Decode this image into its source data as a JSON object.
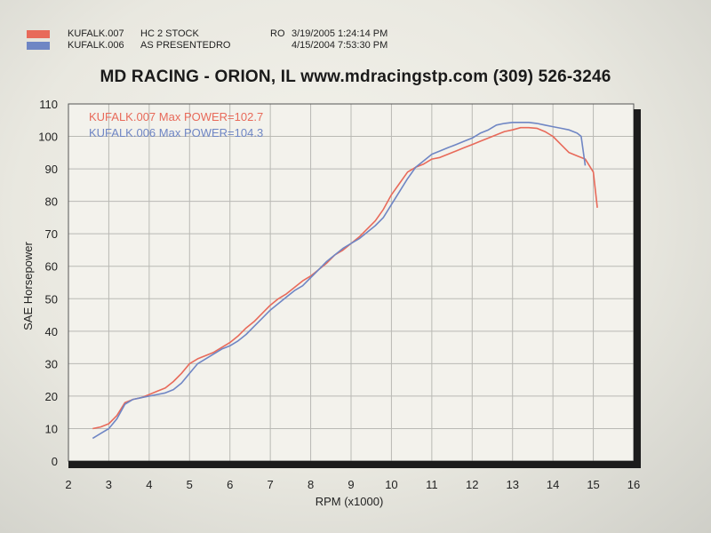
{
  "header": {
    "runs": [
      {
        "id": "KUFALK.007",
        "desc": "HC 2 STOCK",
        "code": "RO",
        "datetime": "3/19/2005 1:24:14 PM",
        "color": "#e86a5a"
      },
      {
        "id": "KUFALK.006",
        "desc": "AS PRESENTEDRO",
        "code": "",
        "datetime": "4/15/2004 7:53:30 PM",
        "color": "#6f86c4"
      }
    ],
    "title": "MD RACING - ORION, IL www.mdracingstp.com (309) 526-3246"
  },
  "chart_data": {
    "type": "line",
    "xlabel": "RPM (x1000)",
    "ylabel": "SAE Horsepower",
    "xlim": [
      2,
      16
    ],
    "ylim": [
      0,
      110
    ],
    "xticks": [
      2,
      3,
      4,
      5,
      6,
      7,
      8,
      9,
      10,
      11,
      12,
      13,
      14,
      15,
      16
    ],
    "yticks": [
      0,
      10,
      20,
      30,
      40,
      50,
      60,
      70,
      80,
      90,
      100,
      110
    ],
    "grid": true,
    "legend": [
      {
        "text": "KUFALK.007  Max POWER=102.7",
        "color": "#e86a5a"
      },
      {
        "text": "KUFALK.006  Max POWER=104.3",
        "color": "#6f86c4"
      }
    ],
    "series": [
      {
        "name": "KUFALK.007",
        "color": "#e86a5a",
        "x": [
          2.6,
          2.8,
          3.0,
          3.2,
          3.4,
          3.6,
          3.8,
          4.0,
          4.2,
          4.4,
          4.6,
          4.8,
          5.0,
          5.2,
          5.4,
          5.6,
          5.8,
          6.0,
          6.2,
          6.4,
          6.6,
          6.8,
          7.0,
          7.2,
          7.4,
          7.6,
          7.8,
          8.0,
          8.2,
          8.4,
          8.6,
          8.8,
          9.0,
          9.2,
          9.4,
          9.6,
          9.8,
          10.0,
          10.2,
          10.4,
          10.6,
          10.8,
          11.0,
          11.2,
          11.4,
          11.6,
          11.8,
          12.0,
          12.2,
          12.4,
          12.6,
          12.8,
          13.0,
          13.2,
          13.4,
          13.6,
          13.8,
          14.0,
          14.2,
          14.4,
          14.6,
          14.8,
          15.0,
          15.1
        ],
        "y": [
          10,
          10.5,
          11.5,
          14,
          18,
          19,
          19.5,
          20.5,
          21.5,
          22.5,
          24.5,
          27,
          30,
          31.5,
          32.5,
          33.5,
          35,
          36.5,
          38.5,
          41,
          43,
          45.5,
          48,
          50,
          51.5,
          53.5,
          55.5,
          57,
          59,
          61,
          63.5,
          65,
          67,
          69,
          71.5,
          74,
          77.5,
          82,
          85.5,
          89,
          90.5,
          91.5,
          93,
          93.5,
          94.5,
          95.5,
          96.5,
          97.5,
          98.5,
          99.5,
          100.5,
          101.5,
          102,
          102.7,
          102.7,
          102.5,
          101.5,
          100,
          97.5,
          95,
          94,
          93,
          89,
          78
        ]
      },
      {
        "name": "KUFALK.006",
        "color": "#6f86c4",
        "x": [
          2.6,
          2.8,
          3.0,
          3.2,
          3.4,
          3.6,
          3.8,
          4.0,
          4.2,
          4.4,
          4.6,
          4.8,
          5.0,
          5.2,
          5.4,
          5.6,
          5.8,
          6.0,
          6.2,
          6.4,
          6.6,
          6.8,
          7.0,
          7.2,
          7.4,
          7.6,
          7.8,
          8.0,
          8.2,
          8.4,
          8.6,
          8.8,
          9.0,
          9.2,
          9.4,
          9.6,
          9.8,
          10.0,
          10.2,
          10.4,
          10.6,
          10.8,
          11.0,
          11.2,
          11.4,
          11.6,
          11.8,
          12.0,
          12.2,
          12.4,
          12.6,
          12.8,
          13.0,
          13.2,
          13.4,
          13.6,
          13.8,
          14.0,
          14.2,
          14.4,
          14.6,
          14.7,
          14.8
        ],
        "y": [
          7,
          8.5,
          10,
          13,
          17.5,
          19,
          19.5,
          20,
          20.5,
          21,
          22,
          24,
          27,
          30,
          31.5,
          33,
          34.5,
          35.5,
          37,
          39,
          41.5,
          44,
          46.5,
          48.5,
          50.5,
          52.5,
          54,
          56.5,
          59,
          61.5,
          63.5,
          65.5,
          67,
          68.5,
          70.5,
          72.5,
          75,
          79,
          83,
          87,
          90.5,
          92.5,
          94.5,
          95.5,
          96.5,
          97.5,
          98.5,
          99.5,
          101,
          102,
          103.5,
          104,
          104.3,
          104.3,
          104.3,
          104,
          103.5,
          103,
          102.5,
          102,
          101,
          100,
          91
        ]
      }
    ]
  }
}
